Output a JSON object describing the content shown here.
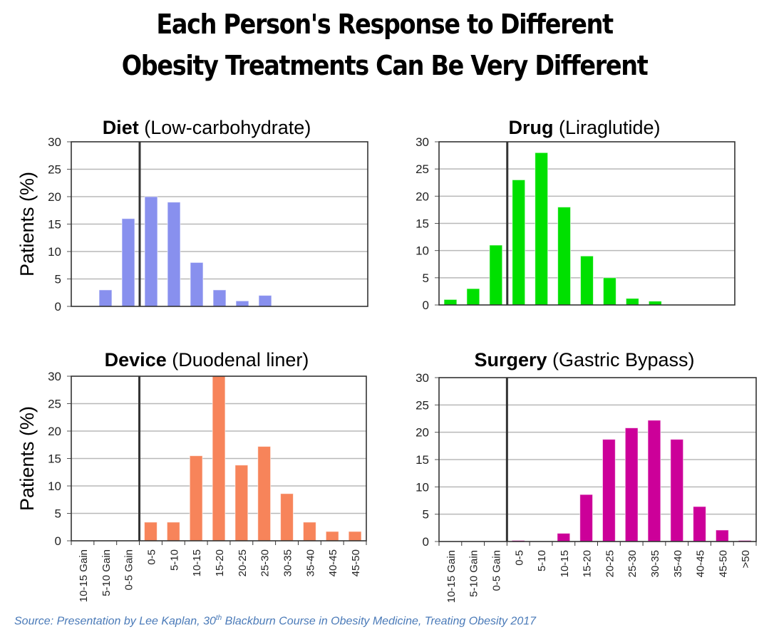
{
  "title": {
    "line1": "Each Person's Response to Different",
    "line2": "Obesity Treatments Can Be Very Different"
  },
  "source": {
    "prefix": "Source: Presentation by Lee Kaplan,  30",
    "superscript": "th",
    "suffix": " Blackburn Course in Obesity Medicine, Treating Obesity 2017"
  },
  "chart_data": [
    {
      "type": "bar",
      "id": "diet",
      "title_bold": "Diet",
      "title_rest": " (Low-carbohydrate)",
      "ylabel": "Patients (%)",
      "xlabel": "",
      "ylim": [
        0,
        30
      ],
      "yticks": [
        0,
        5,
        10,
        15,
        20,
        25,
        30
      ],
      "grid": true,
      "show_xtick_labels": false,
      "categories": [
        "10-15 Gain",
        "5-10 Gain",
        "0-5 Gain",
        "0-5",
        "5-10",
        "10-15",
        "15-20",
        "20-25",
        "25-30",
        "30-35",
        "35-40",
        "40-45",
        "45-50"
      ],
      "values": [
        0,
        3,
        16,
        20,
        19,
        8,
        3,
        1,
        2,
        0,
        0,
        0,
        0
      ],
      "color": "#8890ee",
      "reference_line_after_category": "0-5 Gain",
      "border": "box"
    },
    {
      "type": "bar",
      "id": "drug",
      "title_bold": "Drug",
      "title_rest": " (Liraglutide)",
      "ylabel": "",
      "xlabel": "",
      "ylim": [
        0,
        30
      ],
      "yticks": [
        0,
        5,
        10,
        15,
        20,
        25,
        30
      ],
      "grid": true,
      "show_xtick_labels": false,
      "categories": [
        "10-15 Gain",
        "5-10 Gain",
        "0-5 Gain",
        "0-5",
        "5-10",
        "10-15",
        "15-20",
        "20-25",
        "25-30",
        "30-35",
        "35-40",
        "40-45",
        "45-50"
      ],
      "values": [
        1,
        3,
        11,
        23,
        28,
        18,
        9,
        5,
        1.2,
        0.7,
        0,
        0,
        0
      ],
      "color": "#00e000",
      "reference_line_after_category": "0-5 Gain",
      "border": "box"
    },
    {
      "type": "bar",
      "id": "device",
      "title_bold": "Device",
      "title_rest": " (Duodenal liner)",
      "ylabel": "Patients (%)",
      "xlabel": "",
      "ylim": [
        0,
        30
      ],
      "yticks": [
        0,
        5,
        10,
        15,
        20,
        25,
        30
      ],
      "grid": true,
      "show_xtick_labels": true,
      "categories": [
        "10-15 Gain",
        "5-10 Gain",
        "0-5 Gain",
        "0-5",
        "5-10",
        "10-15",
        "15-20",
        "20-25",
        "25-30",
        "30-35",
        "35-40",
        "40-45",
        "45-50"
      ],
      "values": [
        0,
        0,
        0,
        3.4,
        3.4,
        15.5,
        30,
        13.8,
        17.2,
        8.6,
        3.4,
        1.7,
        1.7
      ],
      "color": "#f7845a",
      "reference_line_after_category": "0-5 Gain",
      "border": "box"
    },
    {
      "type": "bar",
      "id": "surgery",
      "title_bold": "Surgery",
      "title_rest": " (Gastric Bypass)",
      "ylabel": "",
      "xlabel": "",
      "ylim": [
        0,
        30
      ],
      "yticks": [
        0,
        5,
        10,
        15,
        20,
        25,
        30
      ],
      "grid": true,
      "show_xtick_labels": true,
      "categories": [
        "10-15 Gain",
        "5-10 Gain",
        "0-5 Gain",
        "0-5",
        "5-10",
        "10-15",
        "15-20",
        "20-25",
        "25-30",
        "30-35",
        "35-40",
        "40-45",
        "45-50",
        ">50"
      ],
      "values": [
        0,
        0,
        0,
        0.2,
        0,
        1.5,
        8.6,
        18.7,
        20.8,
        22.2,
        18.7,
        6.4,
        2.1,
        0.2
      ],
      "color": "#cc0099",
      "reference_line_after_category": "0-5 Gain",
      "border": "box"
    }
  ]
}
